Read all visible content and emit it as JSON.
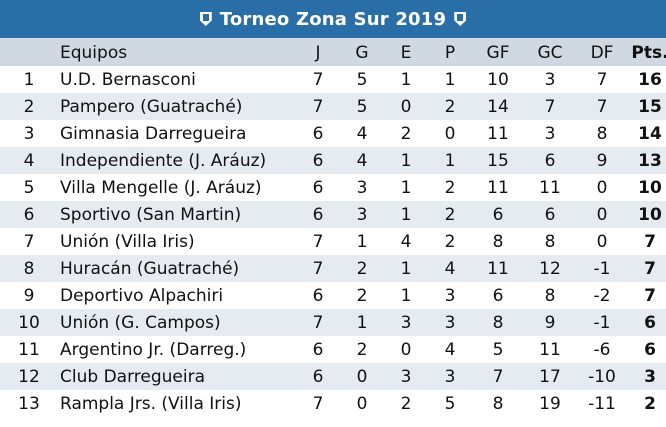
{
  "title": "Torneo Zona Sur 2019",
  "colors": {
    "title_bg": "#2a6ea8",
    "header_bg": "#d0d8e2",
    "stripe": "#e6ebf2"
  },
  "icons": [
    "team-crest-icon"
  ],
  "headers": {
    "team": "Equipos",
    "j": "J",
    "g": "G",
    "e": "E",
    "p": "P",
    "gf": "GF",
    "gc": "GC",
    "df": "DF",
    "pts": "Pts."
  },
  "rows": [
    {
      "pos": "1",
      "team": "U.D. Bernasconi",
      "j": "7",
      "g": "5",
      "e": "1",
      "p": "1",
      "gf": "10",
      "gc": "3",
      "df": "7",
      "pts": "16"
    },
    {
      "pos": "2",
      "team": "Pampero (Guatraché)",
      "j": "7",
      "g": "5",
      "e": "0",
      "p": "2",
      "gf": "14",
      "gc": "7",
      "df": "7",
      "pts": "15"
    },
    {
      "pos": "3",
      "team": "Gimnasia Darregueira",
      "j": "6",
      "g": "4",
      "e": "2",
      "p": "0",
      "gf": "11",
      "gc": "3",
      "df": "8",
      "pts": "14"
    },
    {
      "pos": "4",
      "team": "Independiente (J. Aráuz)",
      "j": "6",
      "g": "4",
      "e": "1",
      "p": "1",
      "gf": "15",
      "gc": "6",
      "df": "9",
      "pts": "13"
    },
    {
      "pos": "5",
      "team": "Villa Mengelle (J. Aráuz)",
      "j": "6",
      "g": "3",
      "e": "1",
      "p": "2",
      "gf": "11",
      "gc": "11",
      "df": "0",
      "pts": "10"
    },
    {
      "pos": "6",
      "team": "Sportivo (San Martin)",
      "j": "6",
      "g": "3",
      "e": "1",
      "p": "2",
      "gf": "6",
      "gc": "6",
      "df": "0",
      "pts": "10"
    },
    {
      "pos": "7",
      "team": "Unión (Villa Iris)",
      "j": "7",
      "g": "1",
      "e": "4",
      "p": "2",
      "gf": "8",
      "gc": "8",
      "df": "0",
      "pts": "7"
    },
    {
      "pos": "8",
      "team": "Huracán (Guatraché)",
      "j": "7",
      "g": "2",
      "e": "1",
      "p": "4",
      "gf": "11",
      "gc": "12",
      "df": "-1",
      "pts": "7"
    },
    {
      "pos": "9",
      "team": "Deportivo Alpachiri",
      "j": "6",
      "g": "2",
      "e": "1",
      "p": "3",
      "gf": "6",
      "gc": "8",
      "df": "-2",
      "pts": "7"
    },
    {
      "pos": "10",
      "team": "Unión (G. Campos)",
      "j": "7",
      "g": "1",
      "e": "3",
      "p": "3",
      "gf": "8",
      "gc": "9",
      "df": "-1",
      "pts": "6"
    },
    {
      "pos": "11",
      "team": "Argentino Jr. (Darreg.)",
      "j": "6",
      "g": "2",
      "e": "0",
      "p": "4",
      "gf": "5",
      "gc": "11",
      "df": "-6",
      "pts": "6"
    },
    {
      "pos": "12",
      "team": "Club Darregueira",
      "j": "6",
      "g": "0",
      "e": "3",
      "p": "3",
      "gf": "7",
      "gc": "17",
      "df": "-10",
      "pts": "3"
    },
    {
      "pos": "13",
      "team": "Rampla Jrs. (Villa Iris)",
      "j": "7",
      "g": "0",
      "e": "2",
      "p": "5",
      "gf": "8",
      "gc": "19",
      "df": "-11",
      "pts": "2"
    }
  ]
}
